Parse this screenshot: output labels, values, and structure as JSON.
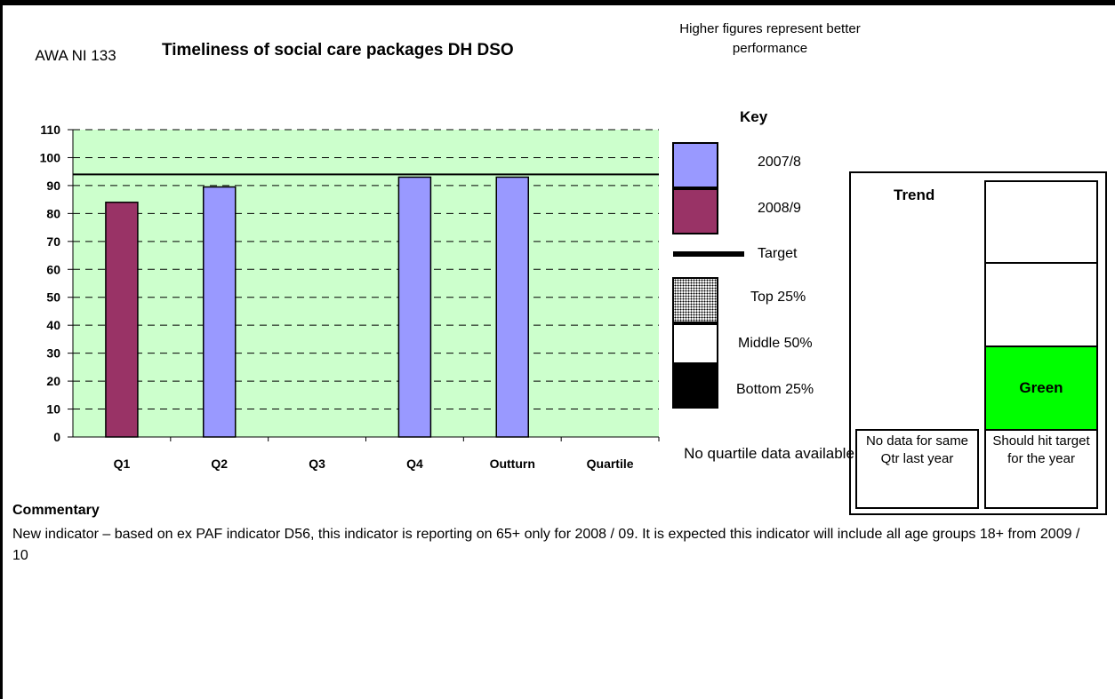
{
  "header": {
    "code": "AWA NI 133",
    "title": "Timeliness of social care packages DH DSO",
    "note": "Higher figures represent better performance"
  },
  "key": {
    "title": "Key",
    "items": [
      {
        "label": "2007/8",
        "color": "#9999ff"
      },
      {
        "label": "2008/9",
        "color": "#993366"
      },
      {
        "label": "Target",
        "color": "#000000"
      },
      {
        "label": "Top 25%",
        "color": "#888888"
      },
      {
        "label": "Middle 50%",
        "color": "#ffffff"
      },
      {
        "label": "Bottom 25%",
        "color": "#000000"
      }
    ],
    "no_quartile": "No quartile data available"
  },
  "trend": {
    "title": "Trend",
    "status": "Green",
    "status_color": "#00ff00",
    "left_caption": "No data for same Qtr last year",
    "right_caption": "Should hit target for the year"
  },
  "commentary": {
    "title": "Commentary",
    "text": "New indicator – based on ex PAF indicator D56, this indicator is reporting on 65+ only for 2008 / 09. It is expected this indicator will include all age groups 18+ from 2009 / 10"
  },
  "chart_data": {
    "type": "bar",
    "categories": [
      "Q1",
      "Q2",
      "Q3",
      "Q4",
      "Outturn",
      "Quartile"
    ],
    "series": [
      {
        "name": "2008/9",
        "color": "#993366",
        "values": [
          84,
          null,
          null,
          null,
          null,
          null
        ]
      },
      {
        "name": "2007/8",
        "color": "#9999ff",
        "values": [
          null,
          89.5,
          null,
          93,
          93,
          null
        ]
      }
    ],
    "target": 94,
    "ylim": [
      0,
      110
    ],
    "yticks": [
      0,
      10,
      20,
      30,
      40,
      50,
      60,
      70,
      80,
      90,
      100,
      110
    ],
    "plot_background": "#ccffcc",
    "grid": true
  }
}
